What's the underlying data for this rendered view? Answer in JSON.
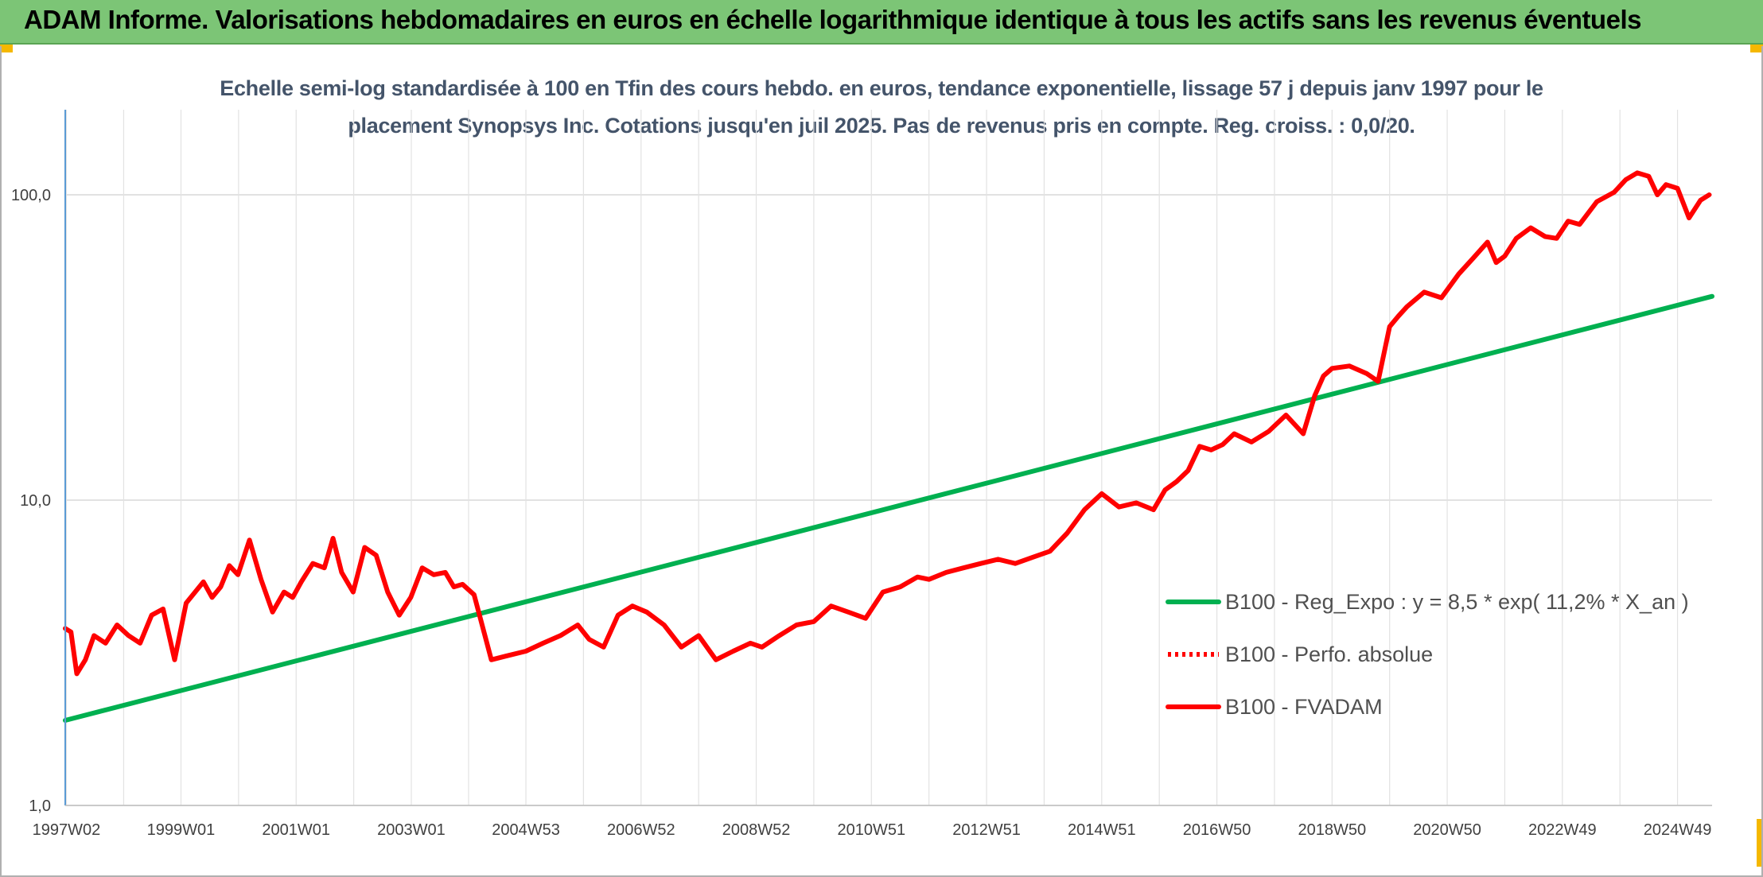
{
  "header": {
    "title": "ADAM Informe. Valorisations hebdomadaires en euros en échelle logarithmique identique à tous les actifs sans les revenus éventuels",
    "background_color": "#7cc576"
  },
  "chart_data": {
    "type": "line",
    "subtitle_line1": "Echelle semi-log standardisée à 100 en Tfin des cours hebdo. en euros, tendance exponentielle, lissage 57 j depuis janv 1997 pour le",
    "subtitle_line2": "placement Synopsys Inc. Cotations jusqu'en juil 2025. Pas de revenus pris en compte. Reg. croiss. : 0,0/20.",
    "y_scale": "log",
    "ylim": [
      1,
      190
    ],
    "xlim": [
      1997.0,
      2025.6
    ],
    "grid": true,
    "legend_position": "center-right",
    "y_ticks": [
      {
        "value": 1,
        "label": "1,0"
      },
      {
        "value": 10,
        "label": "10,0"
      },
      {
        "value": 100,
        "label": "100,0"
      }
    ],
    "x_ticks": [
      {
        "value": 1997.02,
        "label": "1997W02"
      },
      {
        "value": 1999.01,
        "label": "1999W01"
      },
      {
        "value": 2001.01,
        "label": "2001W01"
      },
      {
        "value": 2003.01,
        "label": "2003W01"
      },
      {
        "value": 2005.0,
        "label": "2004W53"
      },
      {
        "value": 2007.0,
        "label": "2006W52"
      },
      {
        "value": 2009.0,
        "label": "2008W52"
      },
      {
        "value": 2011.0,
        "label": "2010W51"
      },
      {
        "value": 2013.0,
        "label": "2012W51"
      },
      {
        "value": 2015.0,
        "label": "2014W51"
      },
      {
        "value": 2017.0,
        "label": "2016W50"
      },
      {
        "value": 2019.0,
        "label": "2018W50"
      },
      {
        "value": 2021.0,
        "label": "2020W50"
      },
      {
        "value": 2023.0,
        "label": "2022W49"
      },
      {
        "value": 2025.0,
        "label": "2024W49"
      }
    ],
    "series": [
      {
        "name": "B100 - Reg_Expo : y = 8,5 * exp( 11,2% *  X_an )",
        "color": "#00b050",
        "style": "solid",
        "x": [
          1997.0,
          2025.6
        ],
        "y": [
          1.9,
          46.5
        ]
      },
      {
        "name": "B100 - Perfo. absolue",
        "color": "#ff0000",
        "style": "dotted",
        "x": [],
        "y": []
      },
      {
        "name": "B100 - FVADAM",
        "color": "#ff0000",
        "style": "solid",
        "x": [
          1997.0,
          1997.1,
          1997.2,
          1997.35,
          1997.5,
          1997.7,
          1997.9,
          1998.1,
          1998.3,
          1998.5,
          1998.7,
          1998.9,
          1999.1,
          1999.4,
          1999.55,
          1999.7,
          1999.85,
          2000.0,
          2000.2,
          2000.4,
          2000.6,
          2000.8,
          2000.95,
          2001.1,
          2001.3,
          2001.5,
          2001.65,
          2001.8,
          2002.0,
          2002.2,
          2002.4,
          2002.6,
          2002.8,
          2003.0,
          2003.2,
          2003.4,
          2003.6,
          2003.75,
          2003.9,
          2004.1,
          2004.4,
          2004.7,
          2005.0,
          2005.3,
          2005.6,
          2005.9,
          2006.1,
          2006.35,
          2006.6,
          2006.85,
          2007.1,
          2007.4,
          2007.7,
          2008.0,
          2008.3,
          2008.6,
          2008.9,
          2009.1,
          2009.4,
          2009.7,
          2010.0,
          2010.3,
          2010.6,
          2010.9,
          2011.2,
          2011.5,
          2011.8,
          2012.0,
          2012.3,
          2012.6,
          2012.9,
          2013.2,
          2013.5,
          2013.8,
          2014.1,
          2014.4,
          2014.7,
          2015.0,
          2015.3,
          2015.6,
          2015.9,
          2016.1,
          2016.3,
          2016.5,
          2016.7,
          2016.9,
          2017.1,
          2017.3,
          2017.6,
          2017.9,
          2018.2,
          2018.5,
          2018.7,
          2018.85,
          2019.0,
          2019.3,
          2019.6,
          2019.8,
          2020.0,
          2020.15,
          2020.3,
          2020.6,
          2020.9,
          2021.2,
          2021.45,
          2021.7,
          2021.85,
          2022.0,
          2022.2,
          2022.45,
          2022.7,
          2022.9,
          2023.1,
          2023.3,
          2023.6,
          2023.9,
          2024.1,
          2024.3,
          2024.5,
          2024.65,
          2024.8,
          2025.0,
          2025.2,
          2025.4,
          2025.55
        ],
        "y": [
          3.8,
          3.7,
          2.7,
          3.0,
          3.6,
          3.4,
          3.9,
          3.6,
          3.4,
          4.2,
          4.4,
          3.0,
          4.6,
          5.4,
          4.8,
          5.2,
          6.1,
          5.7,
          7.4,
          5.5,
          4.3,
          5.0,
          4.8,
          5.4,
          6.2,
          6.0,
          7.5,
          5.8,
          5.0,
          7.0,
          6.6,
          5.0,
          4.2,
          4.8,
          6.0,
          5.7,
          5.8,
          5.2,
          5.3,
          4.9,
          3.0,
          3.1,
          3.2,
          3.4,
          3.6,
          3.9,
          3.5,
          3.3,
          4.2,
          4.5,
          4.3,
          3.9,
          3.3,
          3.6,
          3.0,
          3.2,
          3.4,
          3.3,
          3.6,
          3.9,
          4.0,
          4.5,
          4.3,
          4.1,
          5.0,
          5.2,
          5.6,
          5.5,
          5.8,
          6.0,
          6.2,
          6.4,
          6.2,
          6.5,
          6.8,
          7.8,
          9.3,
          10.5,
          9.5,
          9.8,
          9.3,
          10.8,
          11.5,
          12.5,
          15.0,
          14.6,
          15.2,
          16.5,
          15.5,
          16.8,
          19.0,
          16.5,
          22.0,
          25.5,
          27.0,
          27.5,
          26.0,
          24.5,
          37.0,
          40.0,
          43.0,
          48.0,
          46.0,
          55.0,
          62.0,
          70.0,
          60.0,
          63.0,
          72.0,
          78.0,
          73.0,
          72.0,
          82.0,
          80.0,
          95.0,
          102.0,
          112.0,
          118.0,
          115.0,
          100.0,
          108.0,
          105.0,
          84.0,
          96.0,
          100.0
        ]
      }
    ]
  }
}
